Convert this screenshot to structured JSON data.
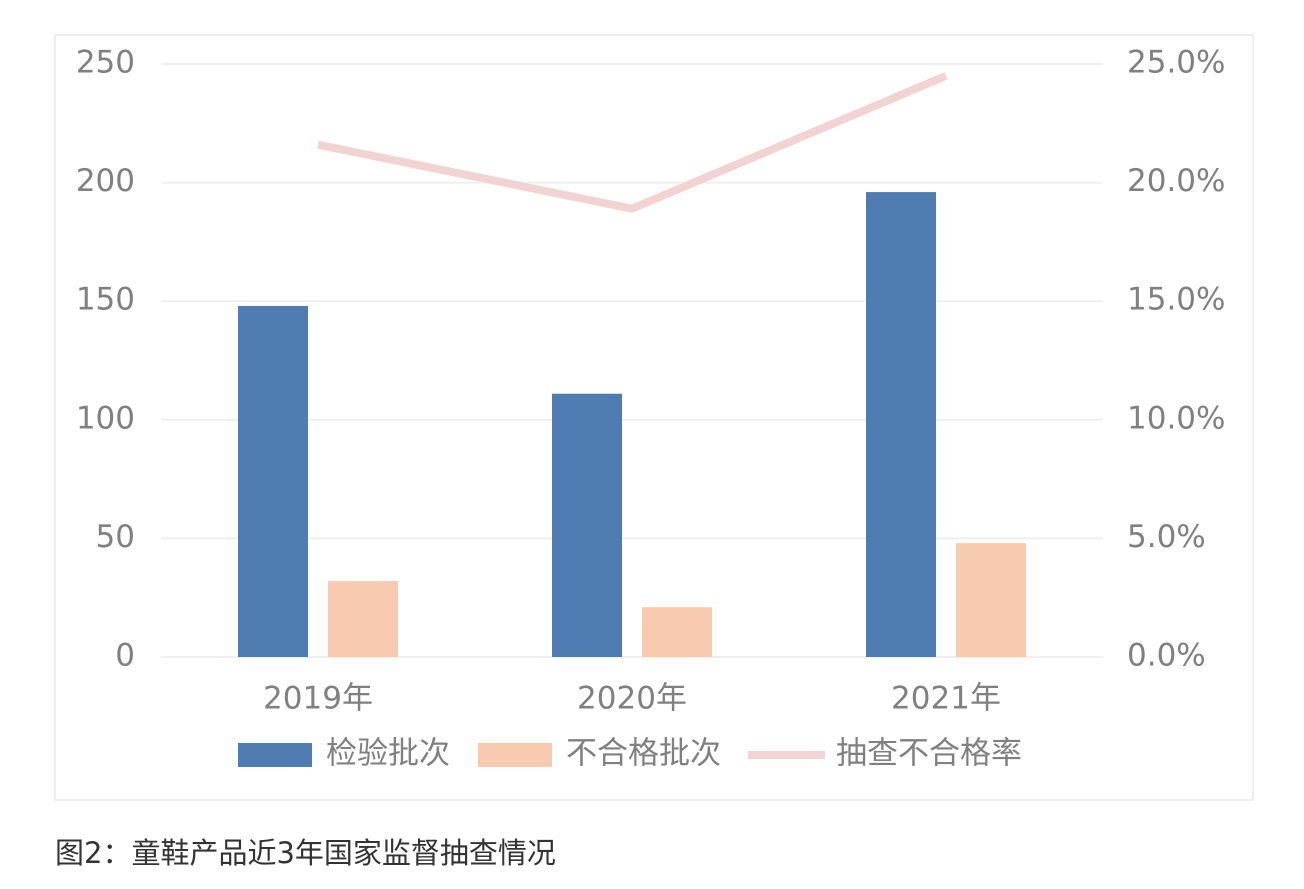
{
  "chart_data": {
    "type": "bar_line",
    "categories": [
      "2019年",
      "2020年",
      "2021年"
    ],
    "series": [
      {
        "name": "检验批次",
        "color": "#4f7db1",
        "type": "bar",
        "values": [
          148,
          111,
          196
        ]
      },
      {
        "name": "不合格批次",
        "color": "#f8cbb0",
        "type": "bar",
        "values": [
          32,
          21,
          48
        ]
      },
      {
        "name": "抽查不合格率",
        "color": "#f1d3d3",
        "type": "line",
        "axis": "y2",
        "values": [
          21.6,
          18.9,
          24.5
        ]
      }
    ],
    "ylim": [
      0,
      250
    ],
    "yticks": [
      0,
      50,
      100,
      150,
      200,
      250
    ],
    "y2lim": [
      0,
      25
    ],
    "y2ticks": [
      {
        "value": 0,
        "label": "0.0%"
      },
      {
        "value": 5,
        "label": "5.0%"
      },
      {
        "value": 10,
        "label": "10.0%"
      },
      {
        "value": 15,
        "label": "15.0%"
      },
      {
        "value": 20,
        "label": "20.0%"
      },
      {
        "value": 25,
        "label": "25.0%"
      }
    ],
    "grid": true,
    "legend": "bottom"
  },
  "caption": "图2：童鞋产品近3年国家监督抽查情况"
}
